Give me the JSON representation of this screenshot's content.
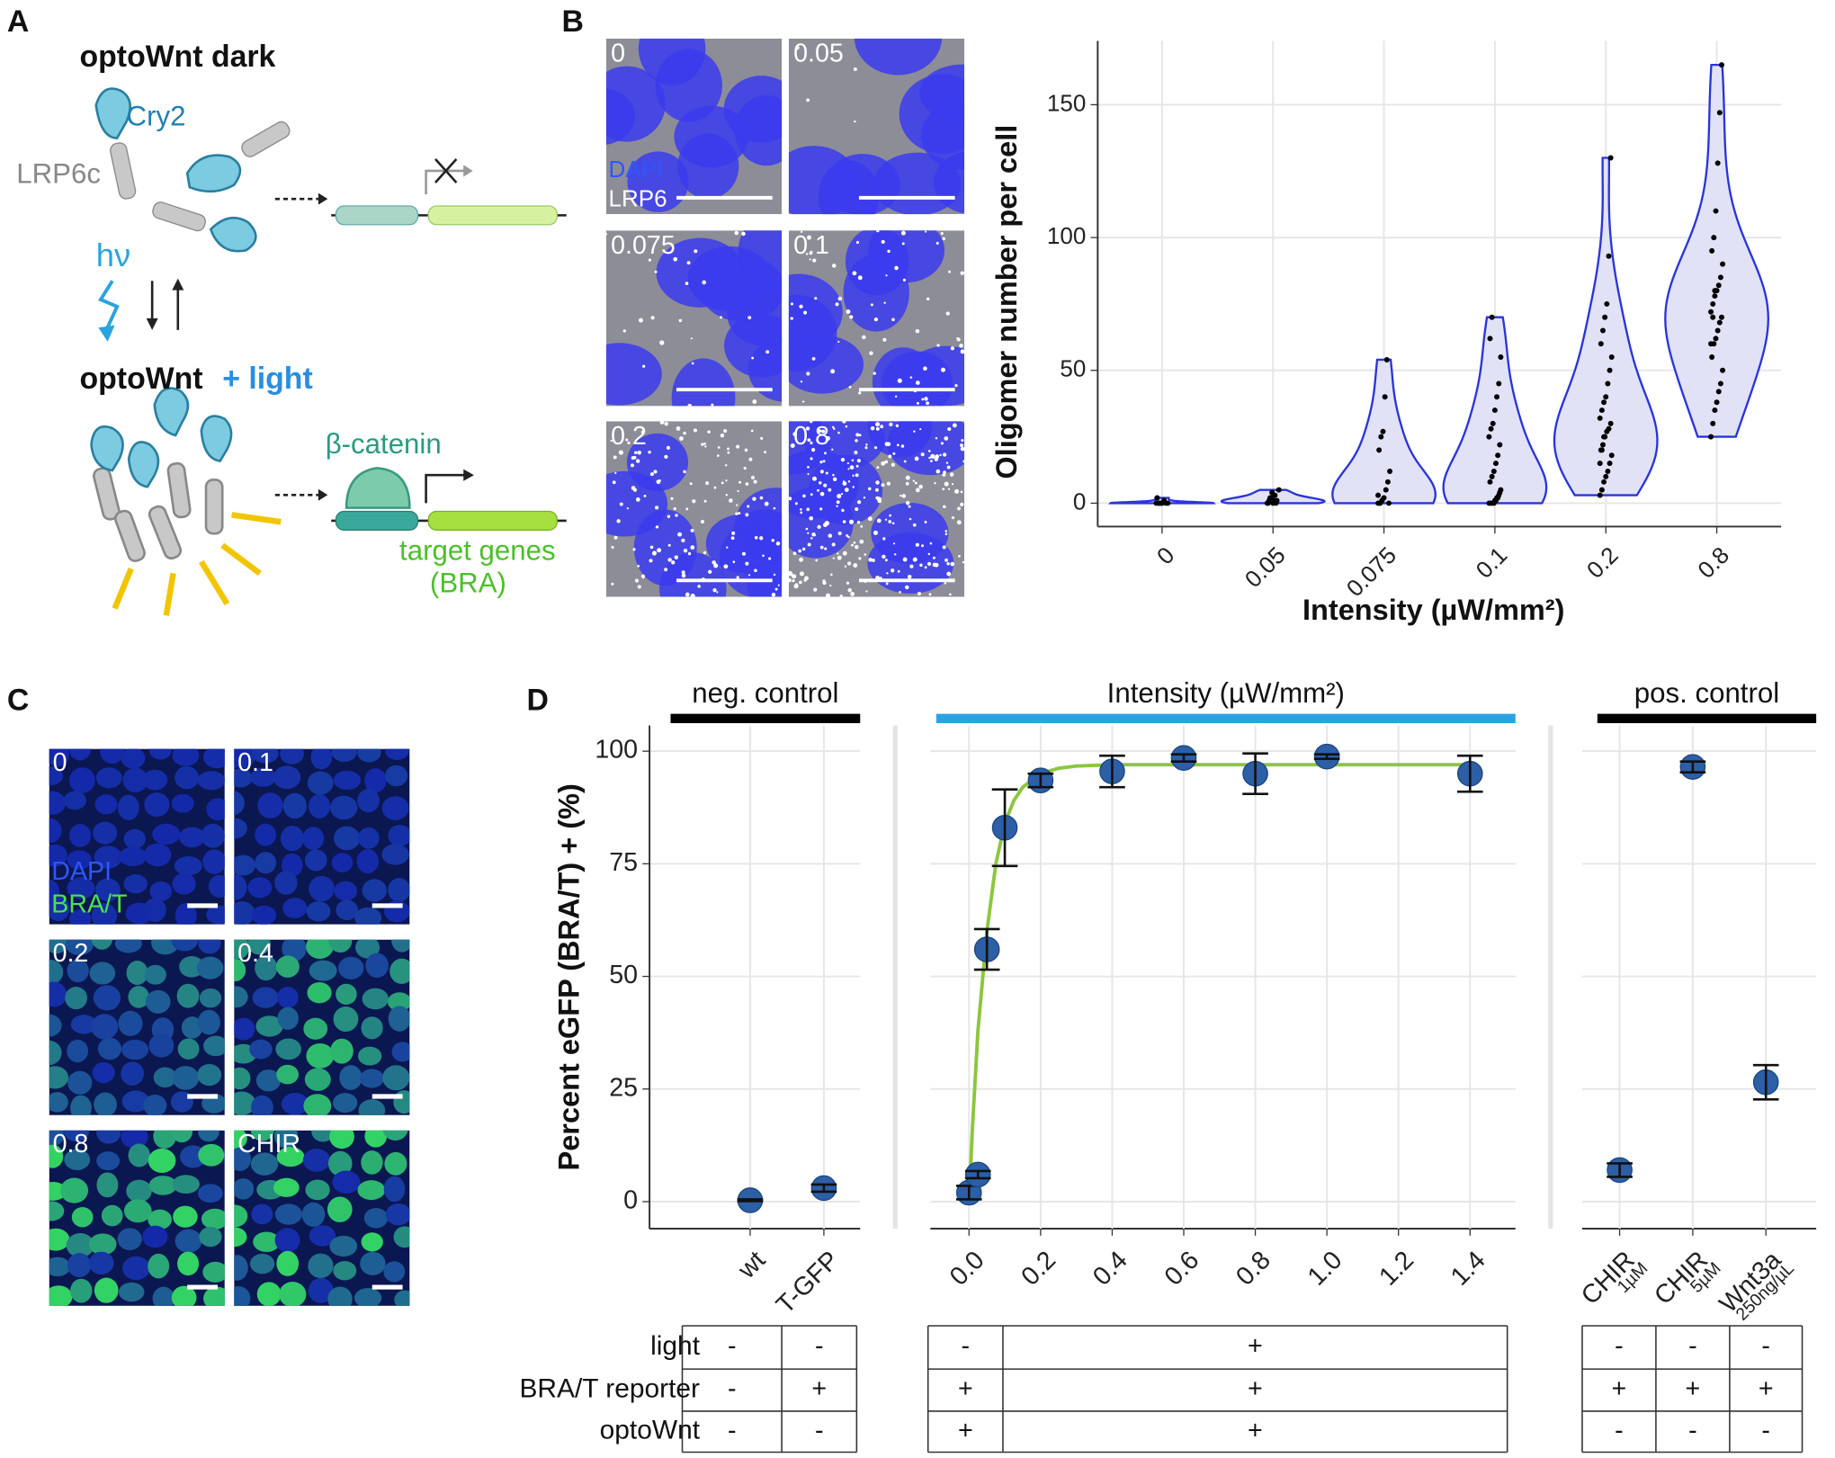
{
  "panels": [
    "A",
    "B",
    "C",
    "D"
  ],
  "diagram": {
    "dark_title": "optoWnt dark",
    "cry2": "Cry2",
    "lrp6c": "LRP6c",
    "hv": "hν",
    "light_title": "optoWnt",
    "light_suffix": "+ light",
    "beta_catenin": "β-catenin",
    "target_genes": "target genes",
    "bra": "(BRA)"
  },
  "micrographs": {
    "b": {
      "labels": [
        "0",
        "0.05",
        "0.075",
        "0.1",
        "0.2",
        "0.8"
      ],
      "channels": [
        "DAPI",
        "LRP6"
      ]
    },
    "c": {
      "labels": [
        "0",
        "0.1",
        "0.2",
        "0.4",
        "0.8",
        "CHIR"
      ],
      "channels": [
        "DAPI",
        "BRA/T"
      ]
    }
  },
  "chart_data": [
    {
      "type": "violin",
      "ylabel": "Oligomer number per cell",
      "xlabel": "Intensity (µW/mm²)",
      "categories": [
        "0",
        "0.05",
        "0.075",
        "0.1",
        "0.2",
        "0.8"
      ],
      "values": [
        [
          0,
          0,
          0,
          0,
          1,
          0,
          0,
          2,
          0,
          0
        ],
        [
          0,
          1,
          2,
          0,
          3,
          1,
          5,
          0,
          2,
          4,
          1,
          0
        ],
        [
          0,
          0,
          1,
          2,
          5,
          8,
          12,
          20,
          25,
          27,
          40,
          54,
          0,
          3,
          0,
          1
        ],
        [
          0,
          0,
          0,
          1,
          2,
          3,
          5,
          8,
          10,
          12,
          15,
          18,
          22,
          25,
          28,
          30,
          35,
          40,
          45,
          55,
          62,
          70,
          0,
          1,
          2,
          4
        ],
        [
          3,
          5,
          8,
          10,
          12,
          15,
          18,
          20,
          22,
          25,
          27,
          28,
          30,
          32,
          35,
          38,
          40,
          45,
          50,
          55,
          60,
          65,
          70,
          75,
          93,
          130,
          15,
          20,
          25
        ],
        [
          25,
          30,
          35,
          38,
          42,
          45,
          50,
          55,
          60,
          62,
          65,
          68,
          70,
          72,
          75,
          78,
          80,
          82,
          85,
          90,
          95,
          100,
          110,
          128,
          147,
          165,
          60,
          70,
          80
        ]
      ],
      "color": "#2a35d8",
      "fill": "#e2e2f6",
      "point_color": "#000000",
      "ylim": [
        -8.8,
        174
      ],
      "yticks": [
        0,
        50,
        100,
        150
      ],
      "grid": true
    },
    {
      "type": "scatter",
      "ylabel": "Percent eGFP (BRA/T) + (%)",
      "color": "#2c5fa6",
      "ylim": [
        -6,
        105.7
      ],
      "yticks": [
        0,
        25,
        50,
        75,
        100
      ],
      "grid": true,
      "facets": [
        {
          "title": "neg. control",
          "strip_color": "#000000",
          "categories": [
            "wt",
            "T-GFP"
          ],
          "values": [
            0.3,
            3
          ],
          "errors": [
            0.2,
            0.8
          ]
        },
        {
          "title": "Intensity (µW/mm²)",
          "strip_color": "#2aa3e0",
          "x": [
            0,
            0.025,
            0.05,
            0.1,
            0.2,
            0.4,
            0.6,
            0.8,
            1,
            1.4
          ],
          "values": [
            2,
            6,
            56,
            83,
            93.5,
            95.5,
            98.5,
            95,
            98.8,
            95
          ],
          "errors": [
            1.5,
            0.8,
            4.5,
            8.5,
            1.5,
            3.5,
            0.8,
            4.5,
            0.5,
            4
          ],
          "xlim": [
            -0.108,
            1.527
          ],
          "xticks": [
            {
              "value": 0,
              "label": "0.0"
            },
            0.2,
            0.4,
            0.6,
            0.8,
            {
              "value": 1,
              "label": "1.0"
            },
            1.2,
            1.4
          ],
          "fit": {
            "color": "#8cc63f",
            "x": [
              0,
              0.01,
              0.025,
              0.05,
              0.075,
              0.1,
              0.125,
              0.15,
              0.2,
              0.25,
              0.3,
              0.4,
              0.6,
              1.4
            ],
            "values": [
              0,
              17,
              38,
              60,
              75,
              84,
              89,
              92,
              95,
              96.2,
              96.7,
              97,
              97,
              97
            ]
          }
        },
        {
          "title": "pos. control",
          "strip_color": "#000000",
          "categories": [
            "CHIR",
            "CHIR",
            "Wnt3a"
          ],
          "category_notes": [
            "1µM",
            "5µM",
            "250ng/µL"
          ],
          "values": [
            7,
            96.5,
            26.5
          ],
          "errors": [
            1.5,
            1.2,
            3.8
          ]
        }
      ]
    }
  ],
  "table": {
    "rows": [
      {
        "label": "light",
        "groups": [
          [
            "-",
            "-"
          ],
          [
            "-",
            "+"
          ],
          [
            "-",
            "-",
            "-"
          ]
        ]
      },
      {
        "label": "BRA/T reporter",
        "groups": [
          [
            "-",
            "+"
          ],
          [
            "+",
            "+"
          ],
          [
            "+",
            "+",
            "+"
          ]
        ]
      },
      {
        "label": "optoWnt",
        "groups": [
          [
            "-",
            "-"
          ],
          [
            "+",
            "+"
          ],
          [
            "-",
            "-",
            "-"
          ]
        ]
      }
    ]
  }
}
